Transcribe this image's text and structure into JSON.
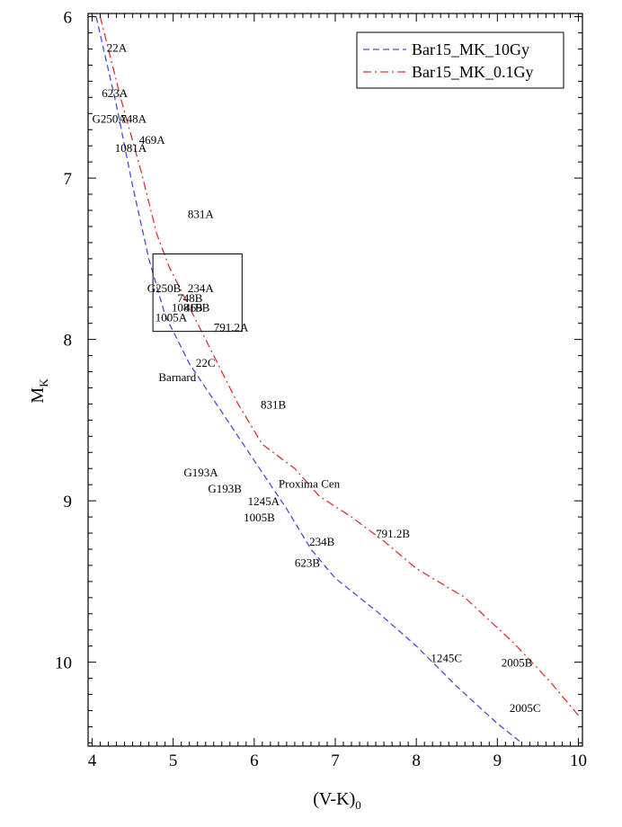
{
  "chart_data": {
    "type": "line",
    "xlabel": "(V-K)",
    "xlabel_sub": "0",
    "ylabel": "M",
    "ylabel_sub": "K",
    "xlim": [
      3.95,
      10.05
    ],
    "ylim": [
      10.52,
      5.98
    ],
    "y_inverted": true,
    "grid": false,
    "legend_position": "top-right",
    "x_ticks": [
      4,
      5,
      6,
      7,
      8,
      9,
      10
    ],
    "x_tick_labels": [
      "4",
      "5",
      "6",
      "7",
      "8",
      "9",
      "10"
    ],
    "y_ticks": [
      6,
      7,
      8,
      9,
      10
    ],
    "y_tick_labels": [
      "6",
      "7",
      "8",
      "9",
      "10"
    ],
    "series": [
      {
        "name": "Bar15_MK_10Gy",
        "color": "#4a4ae6",
        "dash": "dashed",
        "x": [
          4.05,
          4.3,
          4.5,
          4.7,
          4.9,
          5.2,
          5.6,
          6.0,
          6.4,
          6.7,
          7.0,
          7.5,
          8.0,
          8.5,
          9.0,
          9.3
        ],
        "y": [
          6.0,
          6.55,
          7.05,
          7.5,
          7.85,
          8.15,
          8.45,
          8.75,
          9.05,
          9.3,
          9.48,
          9.68,
          9.9,
          10.15,
          10.38,
          10.5
        ]
      },
      {
        "name": "Bar15_MK_0.1Gy",
        "color": "#e03030",
        "dash": "dashdot",
        "x": [
          4.1,
          4.35,
          4.6,
          4.8,
          4.95,
          5.2,
          5.5,
          5.8,
          6.1,
          6.5,
          6.8,
          7.2,
          7.6,
          8.0,
          8.6,
          9.2,
          9.65,
          10.0
        ],
        "y": [
          6.0,
          6.5,
          6.95,
          7.35,
          7.55,
          7.8,
          8.1,
          8.4,
          8.65,
          8.8,
          8.97,
          9.1,
          9.25,
          9.42,
          9.6,
          9.88,
          10.12,
          10.33
        ]
      }
    ],
    "points": [
      {
        "label": "22A",
        "x": 4.18,
        "y": 6.19
      },
      {
        "label": "623A",
        "x": 4.12,
        "y": 6.47
      },
      {
        "label": "G250A",
        "x": 4.0,
        "y": 6.63
      },
      {
        "label": "748A",
        "x": 4.35,
        "y": 6.63
      },
      {
        "label": "469A",
        "x": 4.58,
        "y": 6.76
      },
      {
        "label": "1081A",
        "x": 4.28,
        "y": 6.81
      },
      {
        "label": "831A",
        "x": 5.18,
        "y": 7.22
      },
      {
        "label": "G250B",
        "x": 4.68,
        "y": 7.68
      },
      {
        "label": "234A",
        "x": 5.18,
        "y": 7.68
      },
      {
        "label": "748B",
        "x": 5.05,
        "y": 7.74
      },
      {
        "label": "1081B",
        "x": 4.98,
        "y": 7.8
      },
      {
        "label": "469B",
        "x": 5.14,
        "y": 7.8
      },
      {
        "label": "1005A",
        "x": 4.78,
        "y": 7.86
      },
      {
        "label": "791.2A",
        "x": 5.5,
        "y": 7.92
      },
      {
        "label": "22C",
        "x": 5.28,
        "y": 8.14
      },
      {
        "label": "Barnard",
        "x": 4.82,
        "y": 8.23
      },
      {
        "label": "831B",
        "x": 6.08,
        "y": 8.4
      },
      {
        "label": "G193A",
        "x": 5.13,
        "y": 8.82
      },
      {
        "label": "G193B",
        "x": 5.43,
        "y": 8.92
      },
      {
        "label": "Proxima Cen",
        "x": 6.3,
        "y": 8.89
      },
      {
        "label": "1245A",
        "x": 5.92,
        "y": 9.0
      },
      {
        "label": "1005B",
        "x": 5.87,
        "y": 9.1
      },
      {
        "label": "791.2B",
        "x": 7.5,
        "y": 9.2
      },
      {
        "label": "234B",
        "x": 6.68,
        "y": 9.25
      },
      {
        "label": "623B",
        "x": 6.5,
        "y": 9.38
      },
      {
        "label": "1245C",
        "x": 8.18,
        "y": 9.97
      },
      {
        "label": "2005B",
        "x": 9.05,
        "y": 10.0
      },
      {
        "label": "2005C",
        "x": 9.15,
        "y": 10.28
      }
    ],
    "inset_box": {
      "x": [
        4.75,
        5.85
      ],
      "y": [
        7.47,
        7.95
      ]
    }
  }
}
